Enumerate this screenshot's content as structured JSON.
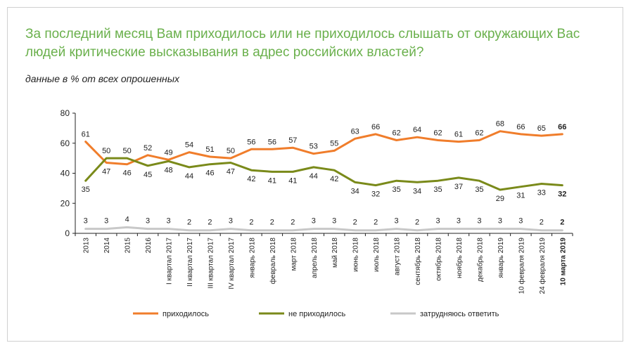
{
  "title": "За последний месяц Вам приходилось или не приходилось слышать от окружающих Вас людей критические высказывания в адрес российских властей?",
  "subtitle": "данные в % от всех опрошенных",
  "chart_data": {
    "type": "line",
    "title": "За последний месяц Вам приходилось или не приходилось слышать от окружающих Вас людей критические высказывания в адрес российских властей?",
    "subtitle": "данные в % от всех опрошенных",
    "categories": [
      "2013",
      "2014",
      "2015",
      "2016",
      "I квартал 2017",
      "II квартал 2017",
      "III квартал 2017",
      "IV квартал 2017",
      "январь 2018",
      "февраль 2018",
      "март 2018",
      "апрель 2018",
      "май 2018",
      "июнь 2018",
      "июль 2018",
      "август 2018",
      "сентябрь 2018",
      "октябрь 2018",
      "ноябрь 2018",
      "декабрь 2018",
      "январь 2019",
      "10 февраля 2019",
      "24 февраля 2019",
      "10 марта 2019"
    ],
    "yticks": [
      "0",
      "20",
      "40",
      "60",
      "80"
    ],
    "ylim": [
      0,
      80
    ],
    "grid": false,
    "legend_position": "bottom",
    "series": [
      {
        "name": "приходилось",
        "color": "#f07d2b",
        "values": [
          61,
          47,
          46,
          52,
          49,
          54,
          51,
          50,
          56,
          56,
          57,
          53,
          55,
          63,
          66,
          62,
          64,
          62,
          61,
          62,
          68,
          66,
          65,
          66
        ],
        "labels": [
          "61",
          "47",
          "46",
          "52",
          "49",
          "54",
          "51",
          "50",
          "56",
          "56",
          "57",
          "53",
          "55",
          "63",
          "66",
          "62",
          "64",
          "62",
          "61",
          "62",
          "68",
          "66",
          "65",
          "66"
        ]
      },
      {
        "name": "не приходилось",
        "color": "#7a8a1a",
        "values": [
          35,
          50,
          50,
          45,
          48,
          44,
          46,
          47,
          42,
          41,
          41,
          44,
          42,
          34,
          32,
          35,
          34,
          35,
          37,
          35,
          29,
          31,
          33,
          32
        ],
        "labels": [
          "35",
          "50",
          "50",
          "45",
          "48",
          "44",
          "46",
          "47",
          "42",
          "41",
          "41",
          "44",
          "42",
          "34",
          "32",
          "35",
          "34",
          "35",
          "37",
          "35",
          "29",
          "31",
          "33",
          "32"
        ]
      },
      {
        "name": "затрудняюсь ответить",
        "color": "#c8c8c8",
        "values": [
          3,
          3,
          4,
          3,
          3,
          2,
          2,
          3,
          2,
          2,
          2,
          3,
          3,
          2,
          2,
          3,
          2,
          3,
          3,
          3,
          3,
          3,
          2,
          2
        ],
        "labels": [
          "3",
          "3",
          "4",
          "3",
          "3",
          "2",
          "2",
          "3",
          "2",
          "2",
          "2",
          "3",
          "3",
          "2",
          "2",
          "3",
          "2",
          "3",
          "3",
          "3",
          "3",
          "3",
          "2",
          "2"
        ]
      }
    ]
  }
}
